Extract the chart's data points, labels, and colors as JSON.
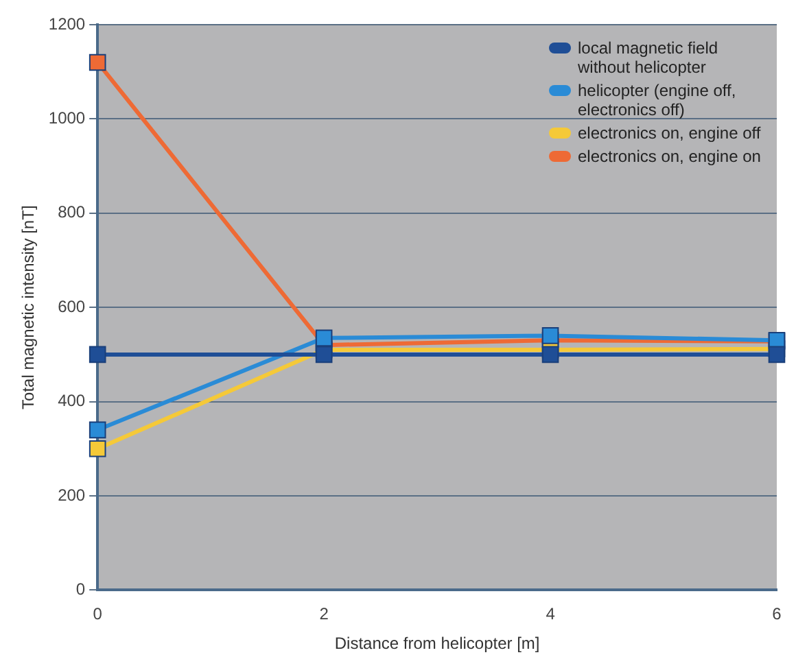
{
  "chart_data": {
    "type": "line",
    "xlabel": "Distance from helicopter [m]",
    "ylabel": "Total magnetic intensity [nT]",
    "x": [
      0,
      2,
      4,
      6
    ],
    "series": [
      {
        "name": "local magnetic field without helicopter",
        "color": "#1f4e96",
        "values": [
          500,
          500,
          500,
          500
        ]
      },
      {
        "name": "helicopter (engine off, electronics off)",
        "color": "#2a8bd6",
        "values": [
          340,
          535,
          540,
          530
        ]
      },
      {
        "name": "electronics on, engine off",
        "color": "#f5c938",
        "values": [
          300,
          510,
          510,
          512
        ]
      },
      {
        "name": "electronics on, engine on",
        "color": "#ee6a35",
        "values": [
          1120,
          520,
          530,
          528
        ]
      }
    ],
    "xlim": [
      0,
      6
    ],
    "xticks": [
      0,
      2,
      4,
      6
    ],
    "ylim": [
      0,
      1200
    ],
    "yticks": [
      0,
      200,
      400,
      600,
      800,
      1000,
      1200
    ],
    "grid": "y",
    "legend": "top right",
    "marker": "square",
    "line_style": "solid"
  }
}
